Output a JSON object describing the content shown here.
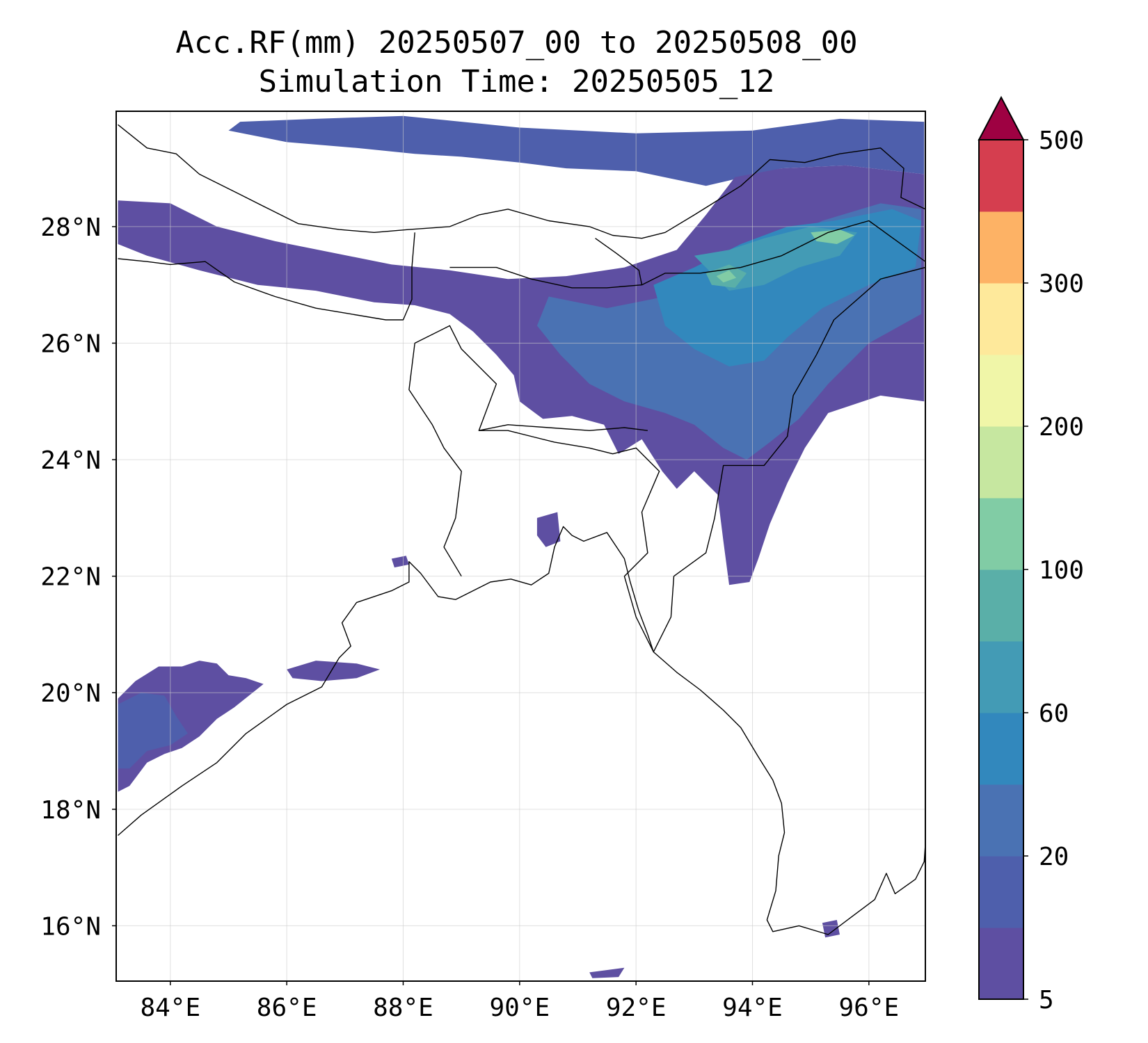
{
  "title": "Acc.RF(mm) 20250507_00 to 20250508_00",
  "subtitle": "Simulation Time: 20250505_12",
  "map": {
    "lon_range": [
      83.07,
      96.97
    ],
    "lat_range": [
      15.05,
      29.98
    ],
    "lon_ticks": [
      {
        "value": 84,
        "label": "84°E"
      },
      {
        "value": 86,
        "label": "86°E"
      },
      {
        "value": 88,
        "label": "88°E"
      },
      {
        "value": 90,
        "label": "90°E"
      },
      {
        "value": 92,
        "label": "92°E"
      },
      {
        "value": 94,
        "label": "94°E"
      },
      {
        "value": 96,
        "label": "96°E"
      }
    ],
    "lat_ticks": [
      {
        "value": 16,
        "label": "16°N"
      },
      {
        "value": 18,
        "label": "18°N"
      },
      {
        "value": 20,
        "label": "20°N"
      },
      {
        "value": 22,
        "label": "22°N"
      },
      {
        "value": 24,
        "label": "24°N"
      },
      {
        "value": 26,
        "label": "26°N"
      },
      {
        "value": 28,
        "label": "28°N"
      }
    ],
    "gridlines": true
  },
  "colorbar": {
    "levels": [
      5,
      10,
      20,
      40,
      60,
      80,
      100,
      150,
      200,
      250,
      300,
      400,
      500
    ],
    "colors": [
      "#5e4fa2",
      "#4e5fac",
      "#4a72b3",
      "#3288bd",
      "#439bb5",
      "#5aafa8",
      "#81cca5",
      "#c6e7a0",
      "#f0f6a8",
      "#fee99b",
      "#fdb265",
      "#d53e4f"
    ],
    "extend_color": "#9e0142",
    "tick_labels": [
      "5",
      "20",
      "60",
      "100",
      "200",
      "300",
      "500"
    ]
  },
  "rain_areas": [
    {
      "level": 10,
      "ring": [
        [
          85.2,
          29.8
        ],
        [
          86.5,
          29.85
        ],
        [
          88.0,
          29.9
        ],
        [
          90.0,
          29.7
        ],
        [
          92.0,
          29.6
        ],
        [
          94.0,
          29.65
        ],
        [
          95.5,
          29.85
        ],
        [
          96.95,
          29.8
        ],
        [
          96.95,
          28.9
        ],
        [
          95.6,
          29.05
        ],
        [
          94.5,
          29.0
        ],
        [
          93.2,
          28.7
        ],
        [
          92.0,
          28.95
        ],
        [
          90.8,
          29.0
        ],
        [
          90.0,
          29.1
        ],
        [
          89.0,
          29.2
        ],
        [
          88.2,
          29.25
        ],
        [
          87.2,
          29.35
        ],
        [
          86.0,
          29.45
        ],
        [
          85.0,
          29.65
        ]
      ]
    },
    {
      "level": 5,
      "ring": [
        [
          83.1,
          28.45
        ],
        [
          84.0,
          28.4
        ],
        [
          84.8,
          28.0
        ],
        [
          85.8,
          27.75
        ],
        [
          86.8,
          27.55
        ],
        [
          87.8,
          27.35
        ],
        [
          88.8,
          27.25
        ],
        [
          89.8,
          27.1
        ],
        [
          90.8,
          27.15
        ],
        [
          91.8,
          27.3
        ],
        [
          92.7,
          27.6
        ],
        [
          93.2,
          28.2
        ],
        [
          93.7,
          28.85
        ],
        [
          94.5,
          29.0
        ],
        [
          95.6,
          29.05
        ],
        [
          96.95,
          28.9
        ],
        [
          96.95,
          25.0
        ],
        [
          96.2,
          25.1
        ],
        [
          95.3,
          24.8
        ],
        [
          94.9,
          24.2
        ],
        [
          94.6,
          23.6
        ],
        [
          94.3,
          22.9
        ],
        [
          94.1,
          22.3
        ],
        [
          93.95,
          21.9
        ],
        [
          93.6,
          21.85
        ],
        [
          93.5,
          22.6
        ],
        [
          93.4,
          23.4
        ],
        [
          93.0,
          23.8
        ],
        [
          92.7,
          23.5
        ],
        [
          92.45,
          23.8
        ],
        [
          92.1,
          24.35
        ],
        [
          91.7,
          24.1
        ],
        [
          91.45,
          24.6
        ],
        [
          90.9,
          24.75
        ],
        [
          90.4,
          24.7
        ],
        [
          90.0,
          25.0
        ],
        [
          89.9,
          25.45
        ],
        [
          89.6,
          25.8
        ],
        [
          89.2,
          26.2
        ],
        [
          88.8,
          26.5
        ],
        [
          88.2,
          26.65
        ],
        [
          87.5,
          26.7
        ],
        [
          86.5,
          26.9
        ],
        [
          85.5,
          27.0
        ],
        [
          84.5,
          27.25
        ],
        [
          83.6,
          27.5
        ],
        [
          83.1,
          27.7
        ]
      ]
    },
    {
      "level": 20,
      "ring": [
        [
          90.5,
          26.8
        ],
        [
          91.5,
          26.6
        ],
        [
          92.5,
          26.8
        ],
        [
          93.2,
          27.2
        ],
        [
          94.2,
          27.6
        ],
        [
          95.2,
          28.1
        ],
        [
          96.2,
          28.4
        ],
        [
          96.9,
          28.3
        ],
        [
          96.9,
          26.5
        ],
        [
          96.0,
          26.0
        ],
        [
          95.3,
          25.3
        ],
        [
          94.8,
          24.7
        ],
        [
          94.3,
          24.3
        ],
        [
          93.9,
          24.0
        ],
        [
          93.5,
          24.2
        ],
        [
          93.0,
          24.6
        ],
        [
          92.5,
          24.8
        ],
        [
          91.8,
          25.0
        ],
        [
          91.2,
          25.3
        ],
        [
          90.7,
          25.8
        ],
        [
          90.3,
          26.3
        ]
      ]
    },
    {
      "level": 40,
      "ring": [
        [
          92.3,
          27.0
        ],
        [
          93.0,
          27.3
        ],
        [
          93.8,
          27.7
        ],
        [
          94.6,
          28.0
        ],
        [
          95.4,
          28.1
        ],
        [
          96.4,
          28.3
        ],
        [
          96.9,
          28.1
        ],
        [
          96.8,
          27.3
        ],
        [
          96.0,
          27.0
        ],
        [
          95.2,
          26.6
        ],
        [
          94.6,
          26.1
        ],
        [
          94.2,
          25.7
        ],
        [
          93.6,
          25.6
        ],
        [
          93.0,
          25.9
        ],
        [
          92.5,
          26.3
        ]
      ]
    },
    {
      "level": 60,
      "ring": [
        [
          93.0,
          27.5
        ],
        [
          93.6,
          27.6
        ],
        [
          94.2,
          27.8
        ],
        [
          95.0,
          28.0
        ],
        [
          95.8,
          27.9
        ],
        [
          95.5,
          27.5
        ],
        [
          94.8,
          27.3
        ],
        [
          94.2,
          27.0
        ],
        [
          93.6,
          26.9
        ]
      ]
    },
    {
      "level": 80,
      "ring": [
        [
          93.2,
          27.2
        ],
        [
          93.6,
          27.35
        ],
        [
          93.9,
          27.2
        ],
        [
          93.7,
          26.95
        ],
        [
          93.3,
          27.0
        ]
      ]
    },
    {
      "level": 100,
      "ring": [
        [
          95.0,
          27.9
        ],
        [
          95.5,
          27.95
        ],
        [
          95.75,
          27.85
        ],
        [
          95.45,
          27.7
        ],
        [
          95.1,
          27.75
        ]
      ]
    },
    {
      "level": 100,
      "ring": [
        [
          93.38,
          27.15
        ],
        [
          93.6,
          27.25
        ],
        [
          93.72,
          27.12
        ],
        [
          93.5,
          27.04
        ]
      ]
    },
    {
      "level": 5,
      "ring": [
        [
          83.1,
          19.9
        ],
        [
          83.4,
          20.2
        ],
        [
          83.8,
          20.45
        ],
        [
          84.2,
          20.45
        ],
        [
          84.5,
          20.55
        ],
        [
          84.8,
          20.5
        ],
        [
          85.0,
          20.3
        ],
        [
          85.3,
          20.25
        ],
        [
          85.6,
          20.15
        ],
        [
          85.1,
          19.75
        ],
        [
          84.8,
          19.55
        ],
        [
          84.5,
          19.25
        ],
        [
          84.2,
          19.05
        ],
        [
          83.9,
          18.95
        ],
        [
          83.6,
          18.8
        ],
        [
          83.3,
          18.4
        ],
        [
          83.1,
          18.3
        ]
      ]
    },
    {
      "level": 10,
      "ring": [
        [
          83.1,
          19.8
        ],
        [
          83.5,
          20.0
        ],
        [
          83.9,
          19.95
        ],
        [
          84.1,
          19.6
        ],
        [
          84.3,
          19.3
        ],
        [
          84.0,
          19.1
        ],
        [
          83.6,
          19.0
        ],
        [
          83.3,
          18.7
        ],
        [
          83.1,
          18.7
        ]
      ]
    },
    {
      "level": 5,
      "ring": [
        [
          86.0,
          20.4
        ],
        [
          86.5,
          20.55
        ],
        [
          87.2,
          20.5
        ],
        [
          87.6,
          20.4
        ],
        [
          87.2,
          20.25
        ],
        [
          86.6,
          20.2
        ],
        [
          86.1,
          20.25
        ]
      ]
    },
    {
      "level": 5,
      "ring": [
        [
          87.8,
          22.3
        ],
        [
          88.05,
          22.35
        ],
        [
          88.1,
          22.2
        ],
        [
          87.85,
          22.15
        ]
      ]
    },
    {
      "level": 5,
      "ring": [
        [
          90.3,
          23.0
        ],
        [
          90.65,
          23.1
        ],
        [
          90.7,
          22.6
        ],
        [
          90.45,
          22.5
        ],
        [
          90.3,
          22.7
        ]
      ]
    },
    {
      "level": 5,
      "ring": [
        [
          95.2,
          16.05
        ],
        [
          95.45,
          16.1
        ],
        [
          95.5,
          15.85
        ],
        [
          95.25,
          15.8
        ]
      ]
    },
    {
      "level": 5,
      "ring": [
        [
          91.2,
          15.2
        ],
        [
          91.8,
          15.28
        ],
        [
          91.7,
          15.12
        ],
        [
          91.25,
          15.1
        ]
      ]
    }
  ],
  "boundaries": [
    [
      [
        83.1,
        29.75
      ],
      [
        83.6,
        29.35
      ],
      [
        84.1,
        29.25
      ],
      [
        84.5,
        28.9
      ],
      [
        85.2,
        28.55
      ],
      [
        85.7,
        28.3
      ],
      [
        86.2,
        28.05
      ],
      [
        86.9,
        27.95
      ],
      [
        87.5,
        27.9
      ],
      [
        88.1,
        27.95
      ],
      [
        88.8,
        28.0
      ],
      [
        89.3,
        28.2
      ],
      [
        89.8,
        28.3
      ],
      [
        90.5,
        28.1
      ],
      [
        91.2,
        28.0
      ],
      [
        91.6,
        27.85
      ],
      [
        92.1,
        27.8
      ],
      [
        92.5,
        27.9
      ],
      [
        93.0,
        28.2
      ],
      [
        93.8,
        28.7
      ],
      [
        94.3,
        29.15
      ],
      [
        94.9,
        29.1
      ],
      [
        95.5,
        29.25
      ],
      [
        96.2,
        29.35
      ],
      [
        96.6,
        29.0
      ],
      [
        96.55,
        28.5
      ],
      [
        96.97,
        28.3
      ]
    ],
    [
      [
        83.1,
        27.45
      ],
      [
        83.6,
        27.4
      ],
      [
        84.0,
        27.35
      ],
      [
        84.6,
        27.4
      ],
      [
        85.1,
        27.05
      ],
      [
        85.8,
        26.8
      ],
      [
        86.5,
        26.6
      ],
      [
        87.1,
        26.5
      ],
      [
        87.7,
        26.4
      ],
      [
        88.0,
        26.4
      ],
      [
        88.15,
        26.75
      ],
      [
        88.15,
        27.3
      ],
      [
        88.2,
        27.9
      ]
    ],
    [
      [
        88.8,
        27.3
      ],
      [
        89.0,
        27.3
      ],
      [
        89.6,
        27.3
      ],
      [
        90.2,
        27.1
      ],
      [
        90.9,
        26.95
      ],
      [
        91.5,
        26.95
      ],
      [
        92.1,
        27.0
      ],
      [
        92.05,
        27.25
      ],
      [
        91.65,
        27.55
      ],
      [
        91.3,
        27.8
      ]
    ],
    [
      [
        92.1,
        27.0
      ],
      [
        92.5,
        27.2
      ],
      [
        93.1,
        27.2
      ],
      [
        93.8,
        27.3
      ],
      [
        94.5,
        27.5
      ],
      [
        95.3,
        27.9
      ],
      [
        96.0,
        28.1
      ],
      [
        96.97,
        27.4
      ]
    ],
    [
      [
        96.97,
        27.3
      ],
      [
        96.2,
        27.1
      ],
      [
        95.4,
        26.4
      ],
      [
        95.1,
        25.8
      ],
      [
        94.7,
        25.1
      ],
      [
        94.6,
        24.4
      ],
      [
        94.2,
        23.9
      ],
      [
        93.5,
        23.9
      ],
      [
        93.35,
        23.0
      ],
      [
        93.2,
        22.4
      ],
      [
        92.65,
        22.0
      ],
      [
        92.6,
        21.3
      ],
      [
        92.3,
        20.7
      ],
      [
        92.0,
        21.3
      ],
      [
        91.8,
        22.0
      ],
      [
        92.2,
        22.4
      ],
      [
        92.1,
        23.1
      ],
      [
        92.4,
        23.8
      ],
      [
        92.0,
        24.2
      ],
      [
        91.6,
        24.1
      ],
      [
        91.2,
        24.2
      ],
      [
        90.6,
        24.3
      ],
      [
        89.8,
        24.5
      ],
      [
        89.3,
        24.5
      ],
      [
        89.6,
        25.3
      ],
      [
        89.0,
        25.9
      ],
      [
        88.8,
        26.3
      ],
      [
        88.2,
        26.0
      ],
      [
        88.1,
        25.2
      ],
      [
        88.5,
        24.6
      ],
      [
        88.7,
        24.2
      ],
      [
        89.0,
        23.8
      ],
      [
        88.9,
        23.0
      ],
      [
        88.7,
        22.5
      ],
      [
        89.0,
        22.0
      ]
    ],
    [
      [
        89.3,
        24.5
      ],
      [
        89.8,
        24.6
      ],
      [
        90.5,
        24.55
      ],
      [
        91.2,
        24.5
      ],
      [
        91.8,
        24.55
      ],
      [
        92.2,
        24.5
      ]
    ],
    [
      [
        83.1,
        17.55
      ],
      [
        83.5,
        17.9
      ],
      [
        84.2,
        18.4
      ],
      [
        84.8,
        18.8
      ],
      [
        85.3,
        19.3
      ],
      [
        86.0,
        19.8
      ],
      [
        86.6,
        20.1
      ],
      [
        86.9,
        20.6
      ],
      [
        87.1,
        20.8
      ],
      [
        86.95,
        21.2
      ],
      [
        87.2,
        21.55
      ],
      [
        87.8,
        21.75
      ],
      [
        88.1,
        21.9
      ],
      [
        88.1,
        22.25
      ],
      [
        88.3,
        22.05
      ],
      [
        88.6,
        21.65
      ],
      [
        88.9,
        21.6
      ],
      [
        89.2,
        21.75
      ],
      [
        89.5,
        21.9
      ],
      [
        89.85,
        21.95
      ],
      [
        90.2,
        21.85
      ],
      [
        90.5,
        22.05
      ],
      [
        90.6,
        22.5
      ],
      [
        90.75,
        22.85
      ],
      [
        90.9,
        22.7
      ],
      [
        91.1,
        22.6
      ],
      [
        91.5,
        22.75
      ],
      [
        91.8,
        22.3
      ],
      [
        91.9,
        21.9
      ],
      [
        92.05,
        21.4
      ],
      [
        92.2,
        21.0
      ],
      [
        92.3,
        20.7
      ],
      [
        92.7,
        20.35
      ],
      [
        93.1,
        20.05
      ],
      [
        93.5,
        19.7
      ],
      [
        93.8,
        19.4
      ],
      [
        94.1,
        18.9
      ],
      [
        94.35,
        18.5
      ],
      [
        94.5,
        18.1
      ],
      [
        94.55,
        17.6
      ],
      [
        94.45,
        17.2
      ],
      [
        94.4,
        16.6
      ],
      [
        94.25,
        16.1
      ],
      [
        94.35,
        15.9
      ],
      [
        94.8,
        16.0
      ],
      [
        95.3,
        15.85
      ],
      [
        95.7,
        16.15
      ],
      [
        96.1,
        16.45
      ],
      [
        96.3,
        16.9
      ],
      [
        96.45,
        16.55
      ],
      [
        96.8,
        16.8
      ],
      [
        96.95,
        17.1
      ],
      [
        96.97,
        17.4
      ]
    ]
  ]
}
